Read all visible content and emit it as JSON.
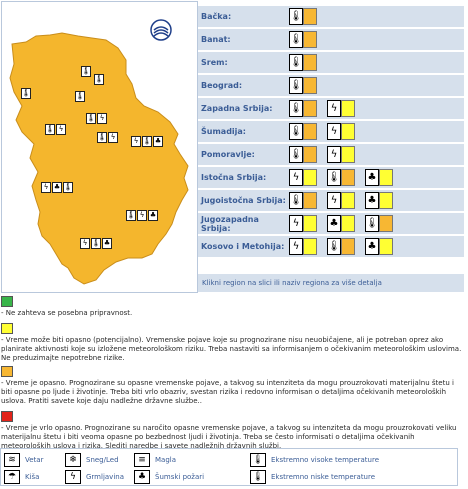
{
  "colors": {
    "green": "#39b54a",
    "yellow": "#ffff33",
    "orange": "#f7b733",
    "red": "#e2231a",
    "region_bg": "#d6e0ec",
    "region_text": "#3b5d96",
    "map_fill": "#f4b62d"
  },
  "regions": [
    {
      "name": "Bačka:",
      "warnings": [
        {
          "icon": "thermometer-icon",
          "glyph": "🌡",
          "level": "orange"
        }
      ]
    },
    {
      "name": "Banat:",
      "warnings": [
        {
          "icon": "thermometer-icon",
          "glyph": "🌡",
          "level": "orange"
        }
      ]
    },
    {
      "name": "Srem:",
      "warnings": [
        {
          "icon": "thermometer-icon",
          "glyph": "🌡",
          "level": "orange"
        }
      ]
    },
    {
      "name": "Beograd:",
      "warnings": [
        {
          "icon": "thermometer-icon",
          "glyph": "🌡",
          "level": "orange"
        }
      ]
    },
    {
      "name": "Zapadna Srbija:",
      "warnings": [
        {
          "icon": "thermometer-icon",
          "glyph": "🌡",
          "level": "orange"
        },
        {
          "icon": "thunderstorm-icon",
          "glyph": "ϟ",
          "level": "yellow"
        }
      ]
    },
    {
      "name": "Šumadija:",
      "warnings": [
        {
          "icon": "thermometer-icon",
          "glyph": "🌡",
          "level": "orange"
        },
        {
          "icon": "thunderstorm-icon",
          "glyph": "ϟ",
          "level": "yellow"
        }
      ]
    },
    {
      "name": "Pomoravlje:",
      "warnings": [
        {
          "icon": "thermometer-icon",
          "glyph": "🌡",
          "level": "orange"
        },
        {
          "icon": "thunderstorm-icon",
          "glyph": "ϟ",
          "level": "yellow"
        }
      ]
    },
    {
      "name": "Istočna Srbija:",
      "warnings": [
        {
          "icon": "thunderstorm-icon",
          "glyph": "ϟ",
          "level": "yellow"
        },
        {
          "icon": "thermometer-icon",
          "glyph": "🌡",
          "level": "orange"
        },
        {
          "icon": "forest-fire-icon",
          "glyph": "♣",
          "level": "yellow"
        }
      ]
    },
    {
      "name": "Jugoistočna Srbija:",
      "warnings": [
        {
          "icon": "thermometer-icon",
          "glyph": "🌡",
          "level": "orange"
        },
        {
          "icon": "thunderstorm-icon",
          "glyph": "ϟ",
          "level": "yellow"
        },
        {
          "icon": "forest-fire-icon",
          "glyph": "♣",
          "level": "yellow"
        }
      ]
    },
    {
      "name": "Jugozapadna Srbija:",
      "warnings": [
        {
          "icon": "thunderstorm-icon",
          "glyph": "ϟ",
          "level": "yellow"
        },
        {
          "icon": "forest-fire-icon",
          "glyph": "♣",
          "level": "yellow"
        },
        {
          "icon": "thermometer-icon",
          "glyph": "🌡",
          "level": "orange"
        }
      ]
    },
    {
      "name": "Kosovo i Metohija:",
      "warnings": [
        {
          "icon": "thunderstorm-icon",
          "glyph": "ϟ",
          "level": "yellow"
        },
        {
          "icon": "thermometer-icon",
          "glyph": "🌡",
          "level": "orange"
        },
        {
          "icon": "forest-fire-icon",
          "glyph": "♣",
          "level": "yellow"
        }
      ]
    }
  ],
  "hint": "Klikni region na slici ili naziv regiona za više detalja",
  "legend": [
    {
      "color": "green",
      "text": "- Ne zahteva se posebna pripravnost."
    },
    {
      "color": "yellow",
      "text": "- Vreme može biti opasno (potencijalno). Vremenske pojave koje su prognozirane nisu neuobičajene, ali je potreban oprez ako planirate aktivnosti koje su izložene meteorološkom riziku. Treba nastaviti sa informisanjem o očekivanim meteorološkim uslovima. Ne preduzimajte nepotrebne rizike."
    },
    {
      "color": "orange",
      "text": "- Vreme je opasno. Prognozirane su opasne vremenske pojave, a takvog su intenziteta da mogu prouzrokovati materijalnu štetu i biti opasne po ljude i životinje. Treba biti vrlo obazriv, svestan rizika i redovno informisan o detaljima očekivanih meteoroloških uslova. Pratiti savete koje daju nadležne državne službe.."
    },
    {
      "color": "red",
      "text": "- Vreme je vrlo opasno. Prognozirane su naročito opasne vremenske pojave, a takvog su intenziteta da mogu prouzrokovati veliku materijalnu štetu i biti veoma opasne po bezbednost ljudi i životinja. Treba se često informisati o detaljima očekivanih meteoroloških uslova i rizika. Slediti naredbe i savete nadležnih državnih službi."
    }
  ],
  "key": [
    {
      "label": "Vetar",
      "icon": "wind-icon",
      "glyph": "≋"
    },
    {
      "label": "Sneg/Led",
      "icon": "snow-icon",
      "glyph": "❄"
    },
    {
      "label": "Magla",
      "icon": "fog-icon",
      "glyph": "≡"
    },
    {
      "label": "Ekstremno visoke temperature",
      "icon": "high-temperature-icon",
      "glyph": "🌡"
    },
    {
      "label": "Kiša",
      "icon": "rain-icon",
      "glyph": "☂"
    },
    {
      "label": "Grmljavina",
      "icon": "thunderstorm-icon",
      "glyph": "ϟ"
    },
    {
      "label": "Šumski požari",
      "icon": "forest-fire-icon",
      "glyph": "♣"
    },
    {
      "label": "Ekstremno niske temperature",
      "icon": "low-temperature-icon",
      "glyph": "🌡"
    }
  ]
}
